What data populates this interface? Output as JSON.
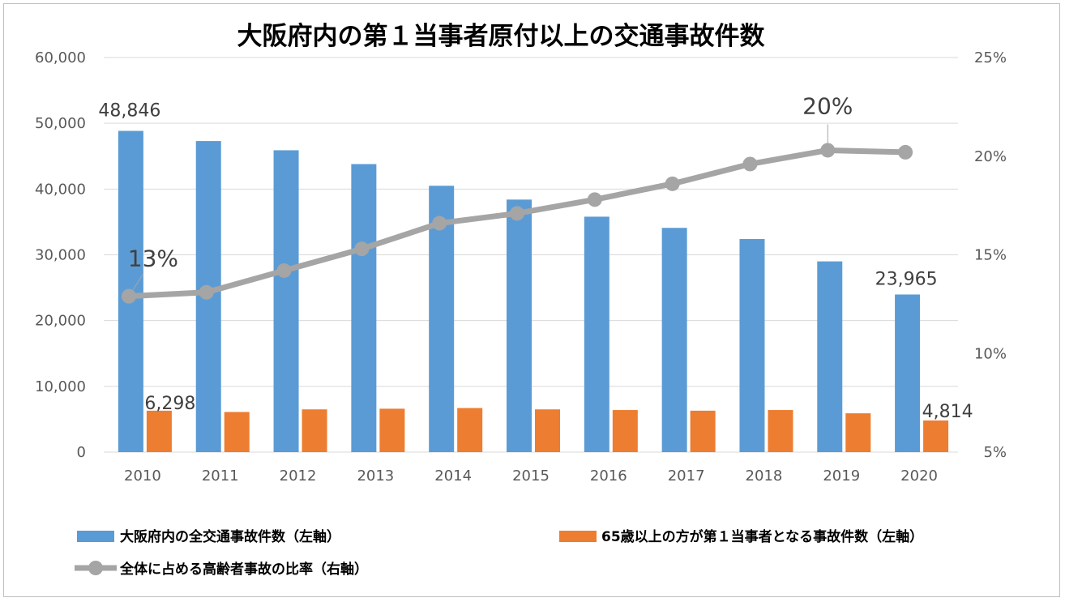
{
  "chart_data": {
    "type": "bar+line",
    "title": "大阪府内の第１当事者原付以上の交通事故件数",
    "categories": [
      "2010",
      "2011",
      "2012",
      "2013",
      "2014",
      "2015",
      "2016",
      "2017",
      "2018",
      "2019",
      "2020"
    ],
    "y_left": {
      "range": [
        0,
        60000
      ],
      "ticks": [
        "0",
        "10,000",
        "20,000",
        "30,000",
        "40,000",
        "50,000",
        "60,000"
      ],
      "tick_values": [
        0,
        10000,
        20000,
        30000,
        40000,
        50000,
        60000
      ]
    },
    "y_right": {
      "range": [
        0.05,
        0.25
      ],
      "ticks": [
        "5%",
        "10%",
        "15%",
        "20%",
        "25%"
      ],
      "tick_values": [
        0.05,
        0.1,
        0.15,
        0.2,
        0.25
      ]
    },
    "series": [
      {
        "name": "大阪府内の全交通事故件数（左軸）",
        "type": "bar",
        "axis": "left",
        "color": "#5b9bd5",
        "values": [
          48846,
          47300,
          45900,
          43800,
          40500,
          38400,
          35800,
          34100,
          32400,
          29000,
          23965
        ]
      },
      {
        "name": "65歳以上の方が第１当事者となる事故件数（左軸）",
        "type": "bar",
        "axis": "left",
        "color": "#ed7d31",
        "values": [
          6298,
          6100,
          6500,
          6600,
          6700,
          6500,
          6400,
          6300,
          6400,
          5900,
          4814
        ]
      },
      {
        "name": "全体に占める高齢者事故の比率（右軸）",
        "type": "line",
        "axis": "right",
        "color": "#a5a5a5",
        "values": [
          0.129,
          0.131,
          0.142,
          0.153,
          0.166,
          0.171,
          0.178,
          0.186,
          0.196,
          0.203,
          0.202
        ]
      }
    ],
    "data_labels": [
      {
        "series": 0,
        "index": 0,
        "text": "48,846"
      },
      {
        "series": 0,
        "index": 10,
        "text": "23,965"
      },
      {
        "series": 1,
        "index": 0,
        "text": "6,298"
      },
      {
        "series": 1,
        "index": 10,
        "text": "4,814"
      },
      {
        "series": 2,
        "index": 0,
        "text": "13%"
      },
      {
        "series": 2,
        "index": 9,
        "text": "20%"
      }
    ],
    "legend_position": "bottom"
  }
}
